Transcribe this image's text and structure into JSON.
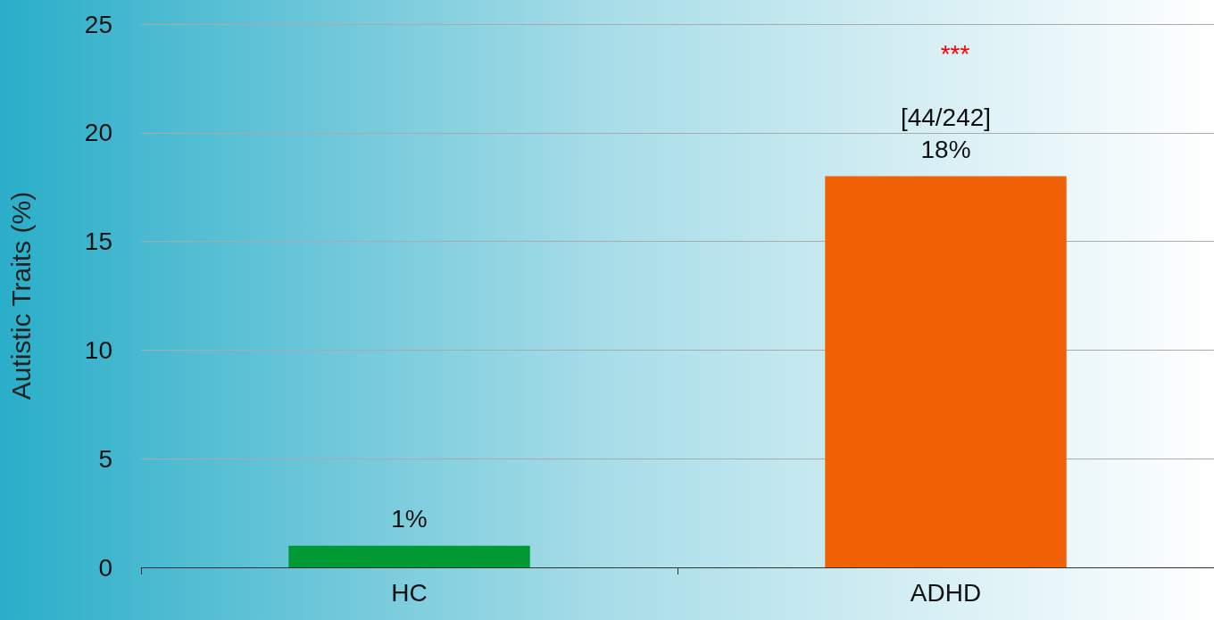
{
  "chart_data": {
    "type": "bar",
    "ylabel": "Autistic Traits (%)",
    "categories": [
      "HC",
      "ADHD"
    ],
    "values": [
      1,
      18
    ],
    "colors": [
      "#009933",
      "#f06205"
    ],
    "value_labels": [
      "1%",
      "[44/242]\n18%"
    ],
    "annotations": [
      "***"
    ],
    "ylim": [
      0,
      25
    ],
    "yticks": [
      0,
      5,
      10,
      15,
      20,
      25
    ],
    "grid": "y"
  }
}
